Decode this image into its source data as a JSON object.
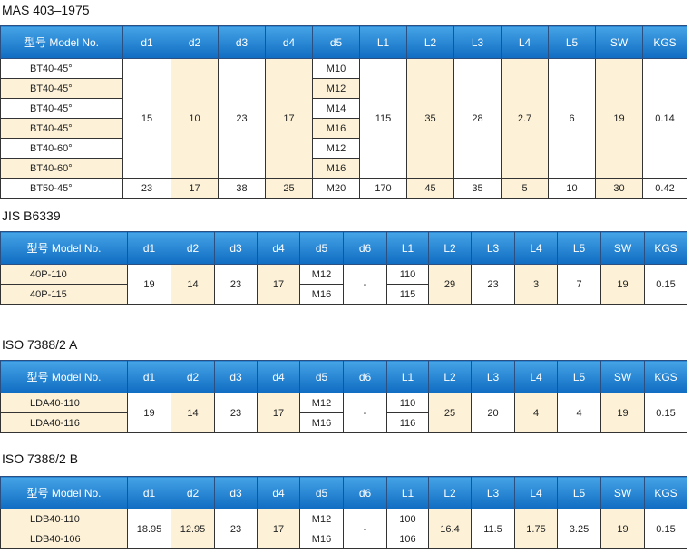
{
  "tables": [
    {
      "title": "MAS 403–1975",
      "headers": [
        "型号 Model No.",
        "d1",
        "d2",
        "d3",
        "d4",
        "d5",
        "L1",
        "L2",
        "L3",
        "L4",
        "L5",
        "SW",
        "KGS"
      ],
      "rows": [
        [
          "BT40-45°",
          15,
          10,
          23,
          17,
          "M10",
          115,
          35,
          28,
          2.7,
          6,
          19,
          0.14
        ],
        [
          "BT40-45°",
          "M12"
        ],
        [
          "BT40-45°",
          "M14"
        ],
        [
          "BT40-45°",
          "M16"
        ],
        [
          "BT40-60°",
          "M12"
        ],
        [
          "BT40-60°",
          "M16"
        ],
        [
          "BT50-45°",
          23,
          17,
          38,
          25,
          "M20",
          170,
          45,
          35,
          5,
          10,
          30,
          0.42
        ]
      ]
    },
    {
      "title": "JIS B6339",
      "headers": [
        "型号 Model No.",
        "d1",
        "d2",
        "d3",
        "d4",
        "d5",
        "d6",
        "L1",
        "L2",
        "L3",
        "L4",
        "L5",
        "SW",
        "KGS"
      ],
      "rows": [
        [
          "40P-110",
          19,
          14,
          23,
          17,
          "M12",
          "-",
          110,
          29,
          23,
          3,
          7,
          19,
          0.15
        ],
        [
          "40P-115",
          "M16",
          115
        ]
      ]
    },
    {
      "title": "ISO 7388/2  A",
      "headers": [
        "型号 Model No.",
        "d1",
        "d2",
        "d3",
        "d4",
        "d5",
        "d6",
        "L1",
        "L2",
        "L3",
        "L4",
        "L5",
        "SW",
        "KGS"
      ],
      "rows": [
        [
          "LDA40-110",
          19,
          14,
          23,
          17,
          "M12",
          "-",
          110,
          25,
          20,
          4,
          4,
          19,
          0.15
        ],
        [
          "LDA40-116",
          "M16",
          116
        ]
      ]
    },
    {
      "title": "ISO  7388/2 B",
      "headers": [
        "型号 Model No.",
        "d1",
        "d2",
        "d3",
        "d4",
        "d5",
        "d6",
        "L1",
        "L2",
        "L3",
        "L4",
        "L5",
        "SW",
        "KGS"
      ],
      "rows": [
        [
          "LDB40-110",
          18.95,
          12.95,
          23,
          17,
          "M12",
          "-",
          100,
          16.4,
          11.5,
          1.75,
          3.25,
          19,
          0.15
        ],
        [
          "LDB40-106",
          "M16",
          106
        ]
      ]
    }
  ]
}
